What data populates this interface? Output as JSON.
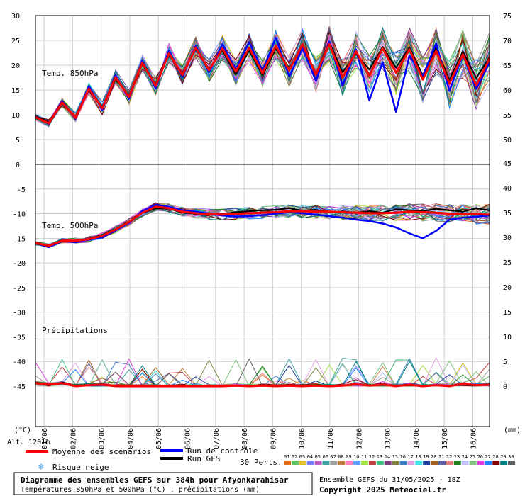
{
  "chart_data": [
    {
      "type": "line",
      "panel": "Temp. 850hPa",
      "ylim": [
        0,
        30
      ],
      "y_ticks": [
        0,
        5,
        10,
        15,
        20,
        25,
        30
      ],
      "right_ticks": [
        50,
        55,
        60,
        65,
        70,
        75
      ],
      "grid": true,
      "series": [
        {
          "name": "Moyenne des scénarios",
          "color": "#ff0000",
          "values": [
            9.5,
            8.3,
            12.5,
            9.4,
            15.3,
            11.3,
            17.6,
            13.6,
            20.5,
            15.8,
            22.4,
            18.0,
            23.5,
            19.0,
            23.4,
            18.7,
            23.5,
            18.4,
            23.9,
            18.9,
            24.2,
            18.1,
            24.3,
            17.5,
            22.8,
            17.9,
            23.4,
            18.5,
            23.2,
            17.1,
            22.9,
            16.3,
            22.2,
            15.9,
            21.3
          ]
        },
        {
          "name": "Run de contrôle",
          "color": "#0000ff",
          "values": [
            9.6,
            8.2,
            12.8,
            9.2,
            15.8,
            11.0,
            18.0,
            13.2,
            20.9,
            15.3,
            22.9,
            17.6,
            23.9,
            18.6,
            24.2,
            19.2,
            24.6,
            18.9,
            25.5,
            17.7,
            23.4,
            16.8,
            24.8,
            15.9,
            23.2,
            12.9,
            20.6,
            10.6,
            21.9,
            17.8,
            24.4,
            14.8,
            22.1,
            15.2,
            20.6
          ]
        },
        {
          "name": "Run GFS",
          "color": "#000000",
          "values": [
            9.7,
            8.6,
            12.3,
            9.5,
            15.0,
            11.6,
            17.3,
            13.9,
            20.2,
            16.1,
            22.1,
            18.3,
            23.2,
            19.3,
            23.0,
            18.1,
            23.0,
            18.0,
            23.3,
            19.3,
            23.6,
            18.3,
            24.7,
            18.6,
            22.3,
            19.1,
            23.7,
            19.5,
            23.6,
            18.0,
            23.6,
            17.0,
            22.8,
            17.4,
            21.6
          ]
        }
      ]
    },
    {
      "type": "line",
      "panel": "Temp. 500hPa",
      "ylim": [
        -45,
        0
      ],
      "y_ticks": [
        -45,
        -40,
        -35,
        -30,
        -25,
        -20,
        -15,
        -10,
        -5,
        0
      ],
      "right_ticks": [
        0,
        5,
        10,
        15,
        20,
        25,
        30,
        35,
        40,
        45
      ],
      "grid": true,
      "series": [
        {
          "name": "Moyenne des scénarios",
          "color": "#ff0000",
          "values": [
            -16.0,
            -16.5,
            -15.5,
            -15.5,
            -15.2,
            -14.5,
            -13.2,
            -11.7,
            -9.8,
            -8.6,
            -8.9,
            -9.6,
            -9.9,
            -10.1,
            -10.2,
            -10.0,
            -9.9,
            -9.8,
            -9.7,
            -9.5,
            -9.5,
            -9.6,
            -9.6,
            -9.7,
            -9.8,
            -9.9,
            -9.9,
            -9.8,
            -9.6,
            -9.7,
            -9.8,
            -10.0,
            -10.1,
            -10.1,
            -10.2
          ]
        },
        {
          "name": "Run de contrôle",
          "color": "#0000ff",
          "values": [
            -16.0,
            -16.8,
            -15.6,
            -15.8,
            -15.3,
            -14.8,
            -13.4,
            -11.9,
            -9.5,
            -8.2,
            -8.6,
            -9.3,
            -9.6,
            -10.0,
            -10.4,
            -10.6,
            -10.5,
            -10.3,
            -10.0,
            -9.7,
            -9.9,
            -10.2,
            -10.5,
            -10.8,
            -11.2,
            -11.5,
            -12.0,
            -12.8,
            -14.0,
            -15.0,
            -13.5,
            -11.2,
            -10.8,
            -10.6,
            -10.4
          ]
        },
        {
          "name": "Run GFS",
          "color": "#000000",
          "values": [
            -16.1,
            -16.4,
            -15.4,
            -15.6,
            -15.1,
            -14.3,
            -13.1,
            -11.6,
            -9.9,
            -8.9,
            -9.0,
            -9.8,
            -10.0,
            -10.2,
            -10.0,
            -9.7,
            -9.5,
            -9.3,
            -9.2,
            -8.9,
            -9.4,
            -9.2,
            -9.8,
            -9.5,
            -9.9,
            -9.5,
            -9.8,
            -9.1,
            -9.3,
            -9.5,
            -9.0,
            -9.3,
            -9.6,
            -8.9,
            -9.3
          ]
        }
      ]
    },
    {
      "type": "line",
      "panel": "Précipitations",
      "y_unit": "mm",
      "right_ticks": [
        0,
        5,
        10
      ],
      "series": [
        {
          "name": "Moyenne des scénarios",
          "color": "#ff0000",
          "values": [
            0.6,
            0.3,
            0.6,
            0.0,
            0.2,
            0.3,
            0.0,
            0.0,
            0.0,
            0.0,
            0.0,
            0.0,
            0.0,
            0.0,
            0.0,
            0.1,
            0.0,
            0.1,
            0.0,
            0.1,
            0.0,
            0.1,
            0.0,
            0.1,
            0.4,
            0.1,
            0.3,
            0.0,
            0.3,
            0.0,
            0.2,
            0.0,
            0.5,
            0.2,
            0.3
          ]
        }
      ]
    }
  ],
  "x_axis": {
    "date_labels": [
      "01/06",
      "02/06",
      "03/06",
      "04/06",
      "05/06",
      "06/06",
      "07/06",
      "08/06",
      "09/06",
      "10/06",
      "11/06",
      "12/06",
      "13/06",
      "14/06",
      "15/06",
      "16/06"
    ],
    "left_unit": "(°C)",
    "right_unit": "(mm)"
  },
  "altitude_label": "Alt. 1201m",
  "legend": {
    "mean": "Moyenne des scénarios",
    "control": "Run de contrôle",
    "gfs": "Run GFS",
    "snow": "Risque neige",
    "perts_label": "30 Perts.",
    "pert_numbers": [
      "01",
      "02",
      "03",
      "04",
      "05",
      "06",
      "07",
      "08",
      "09",
      "10",
      "11",
      "12",
      "13",
      "14",
      "15",
      "16",
      "17",
      "18",
      "19",
      "20",
      "21",
      "22",
      "23",
      "24",
      "25",
      "26",
      "27",
      "28",
      "29",
      "30"
    ],
    "pert_colors": [
      "#e07020",
      "#60c060",
      "#e0c020",
      "#8080ff",
      "#c060c0",
      "#40a0a0",
      "#a0a0a0",
      "#c08040",
      "#ff80c0",
      "#60a0ff",
      "#a0e040",
      "#c04040",
      "#40c080",
      "#804080",
      "#808040",
      "#4080c0",
      "#e0a0e0",
      "#40e0e0",
      "#2040a0",
      "#a06020",
      "#6060a0",
      "#e08080",
      "#208020",
      "#c0c0ff",
      "#80c080",
      "#e040e0",
      "#2080ff",
      "#800000",
      "#008080",
      "#606060"
    ]
  },
  "footer": {
    "title": "Diagramme des ensembles GEFS sur 384h pour Afyonkarahisar",
    "subtitle": "Températures 850hPa et 500hPa (°C) , précipitations (mm)",
    "run": "Ensemble GEFS du 31/05/2025 - 18Z",
    "copyright": "Copyright 2025 Meteociel.fr"
  },
  "colors": {
    "mean": "#ff0000",
    "control": "#0000ff",
    "gfs": "#000000",
    "grid": "#cfcfcf",
    "snow": "#4aa0e8"
  }
}
